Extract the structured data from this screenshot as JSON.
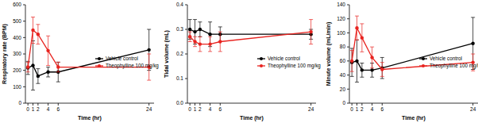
{
  "chart_data": [
    {
      "type": "line",
      "xlabel": "Time (hr)",
      "ylabel": "Respiratory rate (BPM)",
      "x": [
        0,
        1,
        2,
        4,
        6,
        24
      ],
      "xlim": [
        -0.5,
        25
      ],
      "xticks": [
        0,
        1,
        2,
        4,
        6,
        24
      ],
      "ylim": [
        0,
        600
      ],
      "yticks": [
        0,
        100,
        200,
        300,
        400,
        500,
        600
      ],
      "legend": "right",
      "series": [
        {
          "name": "Vehicle control",
          "color": "#000000",
          "marker": "circle",
          "values": [
            215,
            230,
            165,
            190,
            190,
            325
          ],
          "errors": [
            40,
            150,
            45,
            30,
            60,
            125
          ]
        },
        {
          "name": "Theophylline 100 mg/kg",
          "color": "#e8231f",
          "marker": "circle",
          "values": [
            220,
            445,
            420,
            320,
            220,
            220
          ],
          "errors": [
            30,
            80,
            60,
            90,
            30,
            80
          ]
        }
      ]
    },
    {
      "type": "line",
      "xlabel": "Time (hr)",
      "ylabel": "Tidal volume (mL)",
      "x": [
        0,
        1,
        2,
        4,
        6,
        24
      ],
      "xlim": [
        -0.5,
        25
      ],
      "xticks": [
        0,
        1,
        2,
        4,
        6,
        24
      ],
      "ylim": [
        0,
        0.4
      ],
      "yticks": [
        {
          "value": 0,
          "label": "0.0"
        },
        0.1,
        0.2,
        0.3,
        0.4
      ],
      "legend": "right",
      "series": [
        {
          "name": "Vehicle control",
          "color": "#000000",
          "marker": "circle",
          "values": [
            0.3,
            0.29,
            0.3,
            0.28,
            0.28,
            0.28
          ],
          "errors": [
            0.04,
            0.05,
            0.03,
            0.05,
            0.03,
            0.02
          ]
        },
        {
          "name": "Theophylline 100 mg/kg",
          "color": "#e8231f",
          "marker": "circle",
          "values": [
            0.27,
            0.25,
            0.24,
            0.24,
            0.25,
            0.29
          ],
          "errors": [
            0.02,
            0.02,
            0.03,
            0.03,
            0.04,
            0.05
          ]
        }
      ]
    },
    {
      "type": "line",
      "xlabel": "Time (hr)",
      "ylabel": "Minute volume (mL/min)",
      "x": [
        0,
        1,
        2,
        4,
        6,
        24
      ],
      "xlim": [
        -0.5,
        25
      ],
      "xticks": [
        0,
        1,
        2,
        4,
        6,
        24
      ],
      "ylim": [
        0,
        140
      ],
      "yticks": [
        0,
        20,
        40,
        60,
        80,
        100,
        120,
        140
      ],
      "legend": "right",
      "series": [
        {
          "name": "Vehicle control",
          "color": "#000000",
          "marker": "circle",
          "values": [
            58,
            60,
            47,
            47,
            50,
            85
          ],
          "errors": [
            20,
            30,
            10,
            10,
            15,
            37
          ]
        },
        {
          "name": "Theophylline 100 mg/kg",
          "color": "#e8231f",
          "marker": "circle",
          "values": [
            60,
            107,
            93,
            65,
            48,
            58
          ],
          "errors": [
            15,
            17,
            20,
            15,
            10,
            12
          ]
        }
      ]
    }
  ]
}
